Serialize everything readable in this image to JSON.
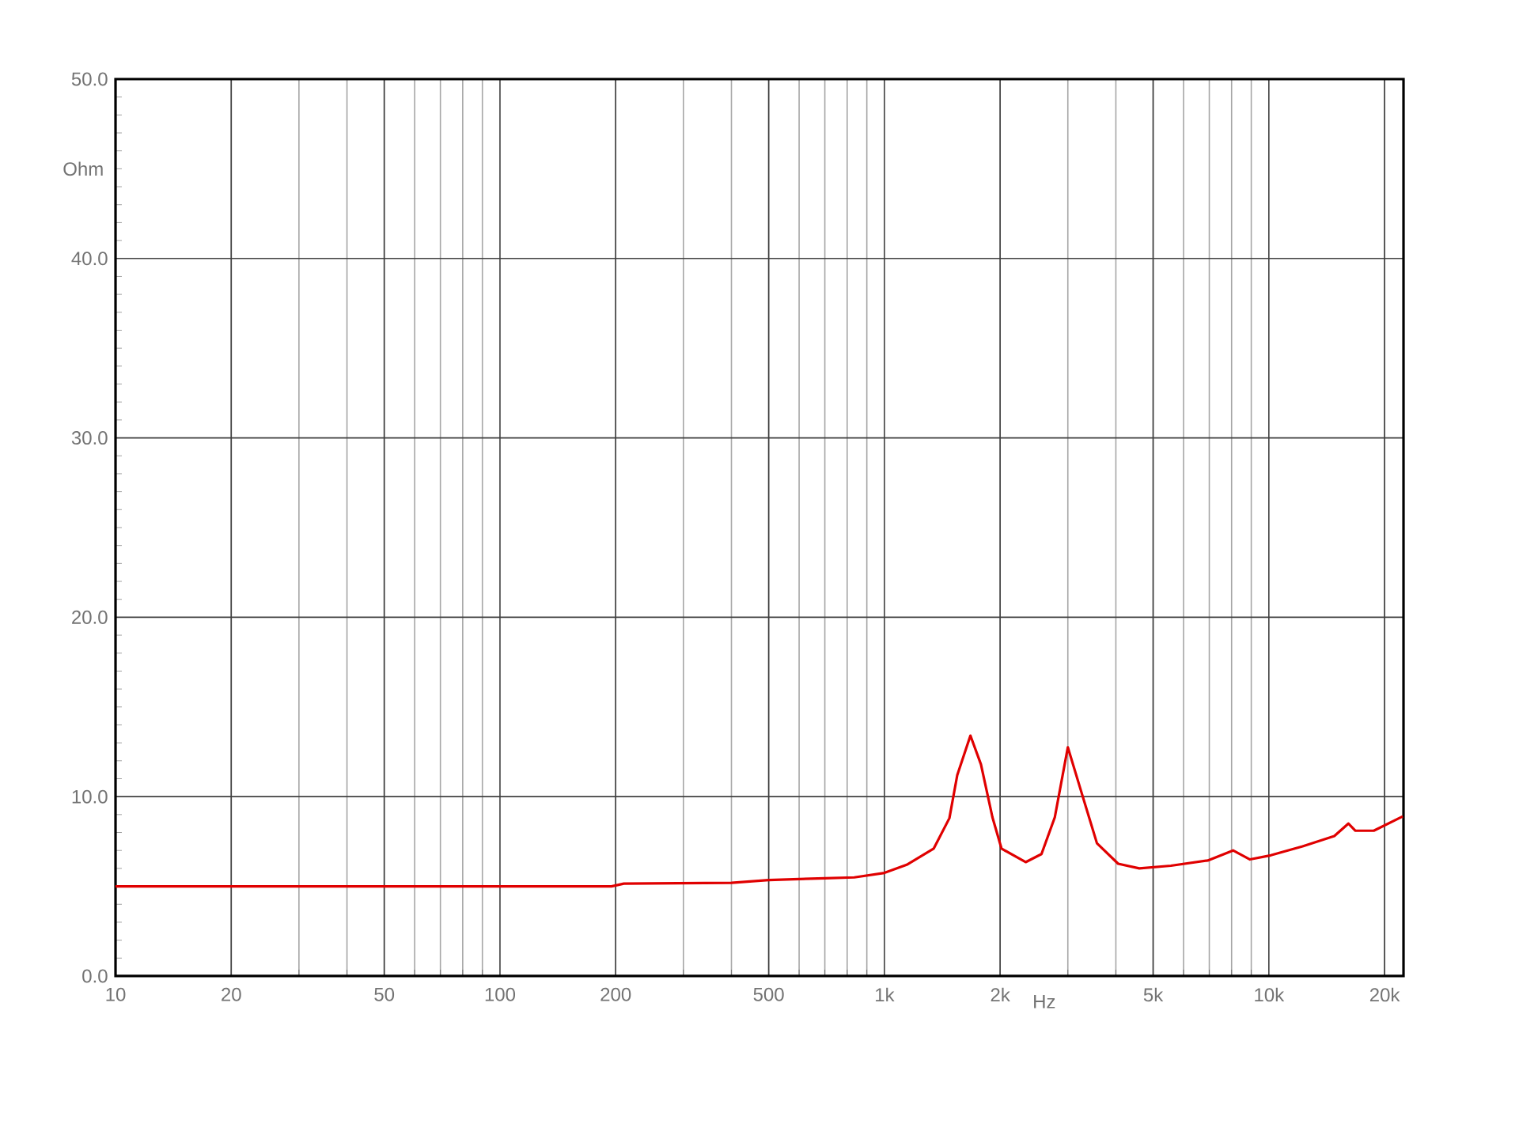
{
  "chart_data": {
    "type": "line",
    "xlabel": "Hz",
    "ylabel": "Ohm",
    "x": [
      10,
      50,
      100,
      195,
      210,
      400,
      500,
      700,
      835,
      1000,
      1143,
      1343,
      1476,
      1547,
      1674,
      1783,
      1910,
      2017,
      2330,
      2562,
      2775,
      3000,
      3249,
      3572,
      4055,
      4603,
      5560,
      6935,
      8070,
      8930,
      10120,
      12240,
      14800,
      16100,
      16800,
      18750,
      22300
    ],
    "values": [
      5.0,
      5.0,
      5.0,
      5.0,
      5.15,
      5.2,
      5.35,
      5.45,
      5.5,
      5.75,
      6.2,
      7.1,
      8.8,
      11.2,
      13.4,
      11.8,
      8.85,
      7.1,
      6.35,
      6.8,
      8.85,
      12.75,
      10.3,
      7.4,
      6.26,
      6.0,
      6.15,
      6.44,
      7.0,
      6.5,
      6.73,
      7.23,
      7.8,
      8.5,
      8.1,
      8.1,
      8.9
    ],
    "color": "#e00000",
    "xlim": [
      10,
      22400
    ],
    "ylim": [
      0,
      50
    ],
    "log": "x",
    "grid": true,
    "xticks": [
      10,
      20,
      50,
      100,
      200,
      500,
      {
        "value": 1000,
        "label": "1k"
      },
      {
        "value": 2000,
        "label": "2k"
      },
      {
        "value": 5000,
        "label": "5k"
      },
      {
        "value": 10000,
        "label": "10k"
      },
      {
        "value": 20000,
        "label": "20k"
      }
    ],
    "yticks": [
      {
        "value": 0,
        "label": "0.0"
      },
      {
        "value": 10,
        "label": "10.0"
      },
      {
        "value": 20,
        "label": "20.0"
      },
      {
        "value": 30,
        "label": "30.0"
      },
      {
        "value": 40,
        "label": "40.0"
      },
      {
        "value": 50,
        "label": "50.0"
      }
    ]
  }
}
